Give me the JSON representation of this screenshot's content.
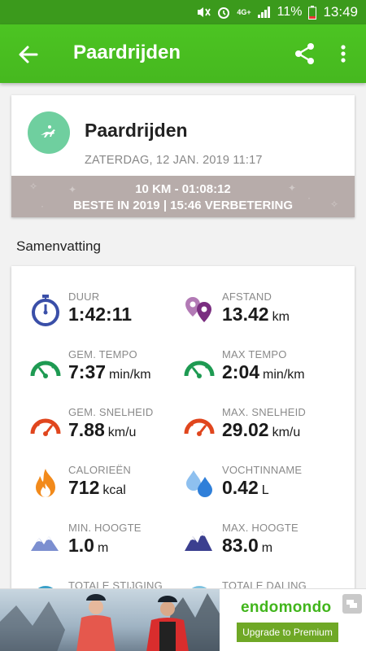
{
  "status_bar": {
    "network": "4G+",
    "battery": "11%",
    "time": "13:49"
  },
  "app_bar": {
    "title": "Paardrijden"
  },
  "workout": {
    "sport": "Paardrijden",
    "date": "ZATERDAG, 12 JAN. 2019 11:17",
    "record_line1": "10 KM  -  01:08:12",
    "record_line2": "BESTE IN 2019  |  15:46 VERBETERING"
  },
  "summary": {
    "heading": "Samenvatting",
    "metrics": [
      {
        "label": "DUUR",
        "value": "1:42:11",
        "unit": "",
        "icon": "stopwatch-icon",
        "color": "#3a4fa8"
      },
      {
        "label": "AFSTAND",
        "value": "13.42",
        "unit": "km",
        "icon": "location-pins-icon",
        "color": "#8b3d8f"
      },
      {
        "label": "GEM. TEMPO",
        "value": "7:37",
        "unit": "min/km",
        "icon": "speedometer-icon",
        "color": "#1e9a52"
      },
      {
        "label": "MAX TEMPO",
        "value": "2:04",
        "unit": "min/km",
        "icon": "speedometer-icon",
        "color": "#1e9a52"
      },
      {
        "label": "GEM. SNELHEID",
        "value": "7.88",
        "unit": "km/u",
        "icon": "speedometer-icon",
        "color": "#e0461e"
      },
      {
        "label": "MAX. SNELHEID",
        "value": "29.02",
        "unit": "km/u",
        "icon": "speedometer-icon",
        "color": "#e0461e"
      },
      {
        "label": "CALORIEËN",
        "value": "712",
        "unit": "kcal",
        "icon": "flame-icon",
        "color": "#f28a1b"
      },
      {
        "label": "VOCHTINNAME",
        "value": "0.42",
        "unit": "L",
        "icon": "water-drops-icon",
        "color": "#3d86d8"
      },
      {
        "label": "MIN. HOOGTE",
        "value": "1.0",
        "unit": "m",
        "icon": "mountain-icon",
        "color": "#5a6fb8"
      },
      {
        "label": "MAX. HOOGTE",
        "value": "83.0",
        "unit": "m",
        "icon": "mountain-icon",
        "color": "#3b3f8f"
      },
      {
        "label": "TOTALE STIJGING",
        "value": "",
        "unit": "",
        "icon": "ascent-icon",
        "color": "#3aa0c8"
      },
      {
        "label": "TOTALE DALING",
        "value": "",
        "unit": "",
        "icon": "descent-icon",
        "color": "#3aa0c8"
      }
    ]
  },
  "ad": {
    "brand": "endomondo",
    "cta": "Upgrade to Premium"
  }
}
